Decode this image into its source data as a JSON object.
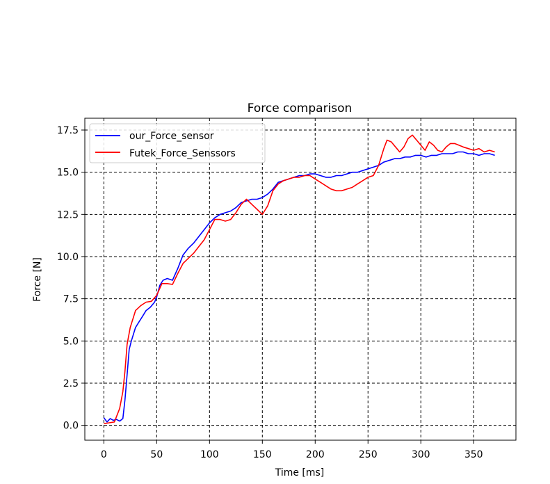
{
  "chart_data": {
    "type": "line",
    "title": "Force comparison",
    "xlabel": "Time [ms]",
    "ylabel": "Force [N]",
    "xlim": [
      -18,
      390
    ],
    "ylim": [
      -0.88,
      18.2
    ],
    "xticks": [
      0,
      50,
      100,
      150,
      200,
      250,
      300,
      350
    ],
    "xtick_labels": [
      "0",
      "50",
      "100",
      "150",
      "200",
      "250",
      "300",
      "350"
    ],
    "yticks": [
      0.0,
      2.5,
      5.0,
      7.5,
      10.0,
      12.5,
      15.0,
      17.5
    ],
    "ytick_labels": [
      "0.0",
      "2.5",
      "5.0",
      "7.5",
      "10.0",
      "12.5",
      "15.0",
      "17.5"
    ],
    "grid": true,
    "grid_style": "dashed",
    "legend_position": "upper-left",
    "series": [
      {
        "name": "our_Force_sensor",
        "color": "#0000ff",
        "x": [
          0,
          3,
          6,
          9,
          12,
          15,
          18,
          20,
          22,
          24,
          26,
          28,
          30,
          33,
          36,
          40,
          44,
          48,
          50,
          53,
          56,
          60,
          65,
          70,
          75,
          80,
          85,
          90,
          95,
          100,
          105,
          110,
          115,
          120,
          125,
          130,
          135,
          140,
          145,
          150,
          155,
          160,
          165,
          170,
          175,
          180,
          185,
          190,
          195,
          200,
          205,
          210,
          215,
          220,
          225,
          230,
          235,
          240,
          245,
          250,
          255,
          260,
          265,
          270,
          275,
          280,
          285,
          290,
          295,
          300,
          305,
          310,
          315,
          320,
          325,
          330,
          335,
          340,
          345,
          350,
          355,
          360,
          365,
          370
        ],
        "y": [
          0.45,
          0.2,
          0.4,
          0.3,
          0.35,
          0.25,
          0.4,
          1.5,
          3.0,
          4.5,
          5.0,
          5.4,
          5.8,
          6.1,
          6.4,
          6.8,
          7.0,
          7.3,
          7.6,
          8.3,
          8.6,
          8.7,
          8.6,
          9.3,
          10.1,
          10.5,
          10.8,
          11.2,
          11.6,
          12.0,
          12.3,
          12.5,
          12.6,
          12.7,
          12.9,
          13.2,
          13.3,
          13.4,
          13.4,
          13.5,
          13.7,
          14.0,
          14.4,
          14.5,
          14.6,
          14.7,
          14.8,
          14.8,
          14.9,
          14.9,
          14.8,
          14.7,
          14.7,
          14.8,
          14.8,
          14.9,
          15.0,
          15.0,
          15.1,
          15.2,
          15.3,
          15.4,
          15.6,
          15.7,
          15.8,
          15.8,
          15.9,
          15.9,
          16.0,
          16.0,
          15.9,
          16.0,
          16.0,
          16.1,
          16.1,
          16.1,
          16.2,
          16.2,
          16.1,
          16.1,
          16.0,
          16.1,
          16.1,
          16.0
        ]
      },
      {
        "name": "Futek_Force_Senssors",
        "color": "#ff0000",
        "x": [
          0,
          5,
          10,
          15,
          18,
          20,
          22,
          25,
          28,
          30,
          35,
          40,
          45,
          50,
          55,
          60,
          65,
          70,
          75,
          80,
          85,
          90,
          95,
          100,
          105,
          110,
          115,
          120,
          125,
          130,
          135,
          140,
          145,
          150,
          155,
          160,
          165,
          170,
          175,
          180,
          185,
          190,
          195,
          200,
          205,
          210,
          215,
          220,
          225,
          230,
          235,
          240,
          245,
          250,
          255,
          260,
          265,
          268,
          272,
          276,
          280,
          284,
          288,
          292,
          296,
          300,
          304,
          308,
          312,
          316,
          320,
          324,
          328,
          332,
          336,
          340,
          345,
          350,
          355,
          360,
          365,
          370
        ],
        "y": [
          0.1,
          0.15,
          0.2,
          1.0,
          2.0,
          3.2,
          4.8,
          5.8,
          6.4,
          6.8,
          7.1,
          7.3,
          7.35,
          7.7,
          8.4,
          8.4,
          8.35,
          9.0,
          9.6,
          9.9,
          10.2,
          10.6,
          11.0,
          11.6,
          12.2,
          12.2,
          12.1,
          12.2,
          12.6,
          13.1,
          13.4,
          13.1,
          12.8,
          12.5,
          13.0,
          13.9,
          14.3,
          14.5,
          14.6,
          14.7,
          14.7,
          14.8,
          14.8,
          14.6,
          14.4,
          14.2,
          14.0,
          13.9,
          13.9,
          14.0,
          14.1,
          14.3,
          14.5,
          14.7,
          14.8,
          15.4,
          16.4,
          16.9,
          16.8,
          16.5,
          16.2,
          16.5,
          17.0,
          17.2,
          16.9,
          16.6,
          16.3,
          16.8,
          16.6,
          16.3,
          16.2,
          16.5,
          16.7,
          16.7,
          16.6,
          16.5,
          16.4,
          16.3,
          16.4,
          16.2,
          16.3,
          16.2
        ]
      }
    ]
  }
}
